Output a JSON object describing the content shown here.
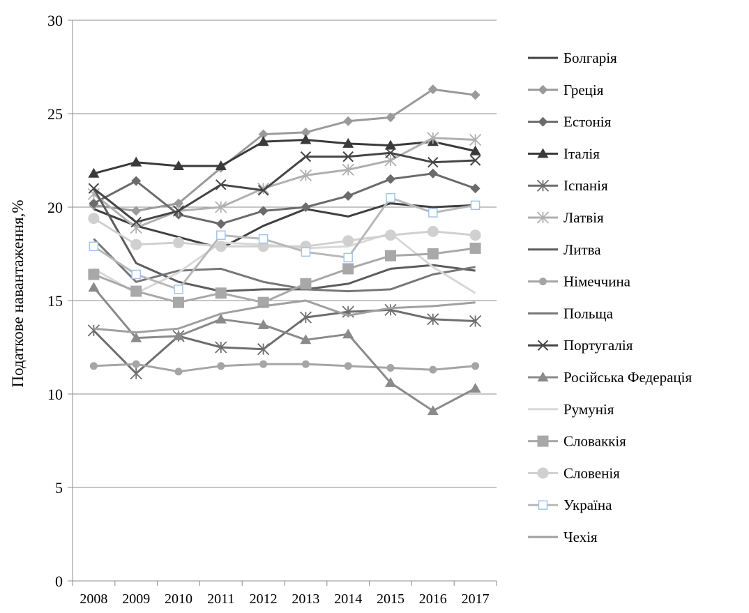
{
  "chart_data": {
    "type": "line",
    "title": "",
    "xlabel": "",
    "ylabel": "Податкове навантаження,%",
    "ylim": [
      0,
      30
    ],
    "yticks": [
      0,
      5,
      10,
      15,
      20,
      25,
      30
    ],
    "x": [
      "2008",
      "2009",
      "2010",
      "2011",
      "2012",
      "2013",
      "2014",
      "2015",
      "2016",
      "2017"
    ],
    "grid": true,
    "legend_position": "right",
    "series": [
      {
        "name": "Болгарія",
        "color": "#404040",
        "marker": "none",
        "values": [
          19.9,
          19.0,
          18.4,
          17.8,
          19.0,
          19.9,
          19.5,
          20.2,
          20.0,
          20.1
        ]
      },
      {
        "name": "Греція",
        "color": "#9a9a9a",
        "marker": "diamond",
        "values": [
          20.1,
          19.8,
          20.2,
          22.1,
          23.9,
          24.0,
          24.6,
          24.8,
          26.3,
          26.0
        ]
      },
      {
        "name": "Естонія",
        "color": "#6b6b6b",
        "marker": "diamond",
        "values": [
          20.2,
          21.4,
          19.6,
          19.1,
          19.8,
          20.0,
          20.6,
          21.5,
          21.8,
          21.0
        ]
      },
      {
        "name": "Італія",
        "color": "#3a3a3a",
        "marker": "triangle",
        "values": [
          21.8,
          22.4,
          22.2,
          22.2,
          23.5,
          23.6,
          23.4,
          23.3,
          23.5,
          23.0
        ]
      },
      {
        "name": "Іспанія",
        "color": "#6e6e6e",
        "marker": "star",
        "values": [
          13.4,
          11.1,
          13.1,
          12.5,
          12.4,
          14.1,
          14.4,
          14.5,
          14.0,
          13.9
        ]
      },
      {
        "name": "Латвія",
        "color": "#b0b0b0",
        "marker": "star",
        "values": [
          20.7,
          18.9,
          19.8,
          20.0,
          21.0,
          21.7,
          22.0,
          22.5,
          23.7,
          23.6
        ]
      },
      {
        "name": "Литва",
        "color": "#5c5c5c",
        "marker": "none",
        "values": [
          21.0,
          17.0,
          16.0,
          15.5,
          15.6,
          15.6,
          15.9,
          16.7,
          16.9,
          16.6
        ]
      },
      {
        "name": "Німеччина",
        "color": "#a5a5a5",
        "marker": "circle-small",
        "values": [
          11.5,
          11.6,
          11.2,
          11.5,
          11.6,
          11.6,
          11.5,
          11.4,
          11.3,
          11.5
        ]
      },
      {
        "name": "Польща",
        "color": "#777777",
        "marker": "none",
        "values": [
          18.3,
          16.0,
          16.6,
          16.7,
          16.0,
          15.6,
          15.5,
          15.6,
          16.4,
          16.8
        ]
      },
      {
        "name": "Португалія",
        "color": "#454545",
        "marker": "x",
        "values": [
          21.0,
          19.2,
          19.8,
          21.2,
          20.9,
          22.7,
          22.7,
          22.9,
          22.4,
          22.5
        ]
      },
      {
        "name": "Російська Федерація",
        "color": "#8a8a8a",
        "marker": "triangle",
        "values": [
          15.7,
          13.0,
          13.1,
          14.0,
          13.7,
          12.9,
          13.2,
          10.6,
          9.1,
          10.3
        ]
      },
      {
        "name": "Румунія",
        "color": "#d8d8d8",
        "marker": "none",
        "values": [
          16.7,
          15.4,
          16.5,
          18.1,
          18.0,
          17.8,
          17.9,
          18.6,
          16.8,
          15.4
        ]
      },
      {
        "name": "Словаккія",
        "color": "#a8a8a8",
        "marker": "square",
        "values": [
          16.4,
          15.5,
          14.9,
          15.4,
          14.9,
          15.9,
          16.7,
          17.4,
          17.5,
          17.8
        ]
      },
      {
        "name": "Словенія",
        "color": "#d0d0d0",
        "marker": "circle",
        "values": [
          19.4,
          18.0,
          18.1,
          17.9,
          17.9,
          17.9,
          18.2,
          18.5,
          18.7,
          18.5
        ]
      },
      {
        "name": "Україна",
        "color": "#b8b8b8",
        "marker": "square-open",
        "values": [
          17.9,
          16.4,
          15.6,
          18.5,
          18.3,
          17.6,
          17.3,
          20.5,
          19.7,
          20.1
        ]
      },
      {
        "name": "Чехія",
        "color": "#a0a0a0",
        "marker": "none",
        "values": [
          13.5,
          13.3,
          13.5,
          14.3,
          14.7,
          15.0,
          14.2,
          14.6,
          14.7,
          14.9
        ]
      }
    ]
  }
}
